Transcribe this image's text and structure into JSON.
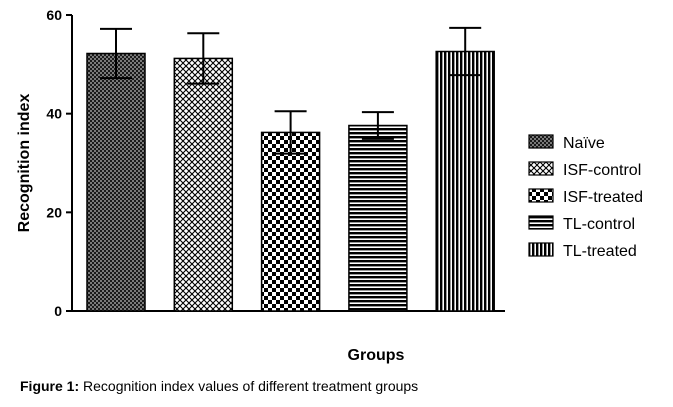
{
  "chart_data": {
    "type": "bar",
    "xlabel": "Groups",
    "ylabel": "Recognition index",
    "ylim": [
      0,
      60
    ],
    "yticks": [
      "0",
      "20",
      "40",
      "60"
    ],
    "categories": [
      "Naïve",
      "ISF-control",
      "ISF-treated",
      "TL-control",
      "TL-treated"
    ],
    "values": [
      52.2,
      51.2,
      36.2,
      37.6,
      52.6
    ],
    "errors": [
      5.0,
      5.1,
      4.3,
      2.7,
      4.8
    ],
    "patterns": [
      "dense-check",
      "crosshatch",
      "large-check",
      "horizontal",
      "vertical"
    ],
    "legend": {
      "position": "right",
      "entries": [
        "Naïve",
        "ISF-control",
        "ISF-treated",
        "TL-control",
        "TL-treated"
      ]
    }
  },
  "caption": {
    "label": "Figure 1:",
    "text": " Recognition index values of different treatment groups"
  }
}
